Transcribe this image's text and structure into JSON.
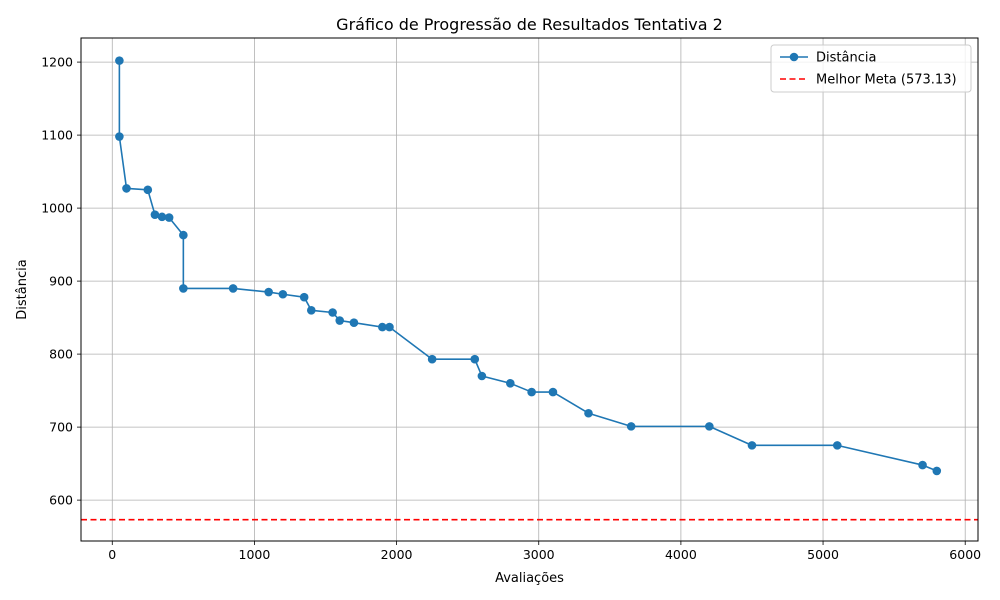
{
  "chart_data": {
    "type": "line",
    "title": "Gráfico de Progressão de Resultados Tentativa 2",
    "xlabel": "Avaliações",
    "ylabel": "Distância",
    "xlim": [
      -220,
      6090
    ],
    "ylim": [
      544,
      1233
    ],
    "xticks": [
      0,
      1000,
      2000,
      3000,
      4000,
      5000,
      6000
    ],
    "yticks": [
      600,
      700,
      800,
      900,
      1000,
      1100,
      1200
    ],
    "grid": true,
    "legend_position": "top-right",
    "series": [
      {
        "name": "Distância",
        "color": "#1f77b4",
        "marker": "circle",
        "x": [
          50,
          50,
          100,
          250,
          300,
          350,
          400,
          500,
          500,
          850,
          1100,
          1200,
          1350,
          1400,
          1550,
          1600,
          1700,
          1900,
          1950,
          2250,
          2550,
          2600,
          2800,
          2950,
          3100,
          3350,
          3650,
          4200,
          4500,
          5100,
          5700,
          5800
        ],
        "y": [
          1202,
          1098,
          1027,
          1025,
          991,
          988,
          987,
          963,
          890,
          890,
          885,
          882,
          878,
          860,
          857,
          846,
          843,
          837,
          837,
          793,
          793,
          770,
          760,
          748,
          748,
          719,
          701,
          701,
          675,
          675,
          648,
          640
        ]
      }
    ],
    "reference_lines": [
      {
        "name": "Melhor Meta (573.13)",
        "orientation": "horizontal",
        "value": 573.13,
        "color": "#ff0000",
        "style": "dashed"
      }
    ]
  }
}
